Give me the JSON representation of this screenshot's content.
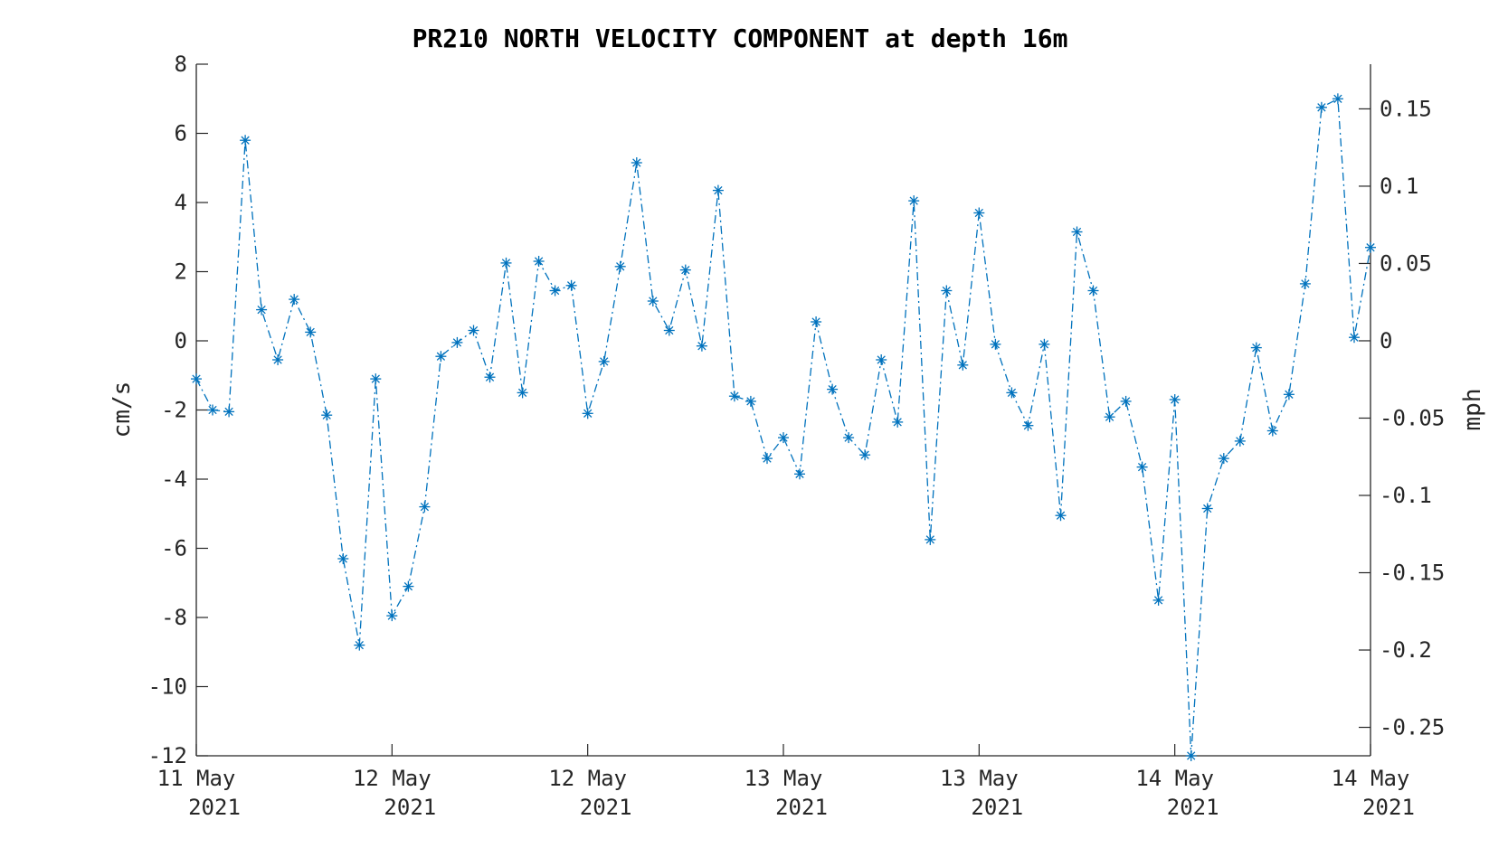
{
  "chart_data": {
    "type": "line",
    "title": "PR210 NORTH VELOCITY COMPONENT at depth 16m",
    "ylabel": "cm/s",
    "ylabel_right": "mph",
    "ylim": [
      -12,
      8
    ],
    "ylim_right": [
      -0.2684,
      0.1789
    ],
    "y_ticks": [
      "8",
      "6",
      "4",
      "2",
      "0",
      "-2",
      "-4",
      "-6",
      "-8",
      "-10",
      "-12"
    ],
    "y_ticks_right": [
      "0.15",
      "0.1",
      "0.05",
      "0",
      "-0.05",
      "-0.1",
      "-0.15",
      "-0.2",
      "-0.25"
    ],
    "x_ticks": [
      {
        "line1": "11 May",
        "line2": "2021"
      },
      {
        "line1": "12 May",
        "line2": "2021"
      },
      {
        "line1": "12 May",
        "line2": "2021"
      },
      {
        "line1": "13 May",
        "line2": "2021"
      },
      {
        "line1": "13 May",
        "line2": "2021"
      },
      {
        "line1": "14 May",
        "line2": "2021"
      },
      {
        "line1": "14 May",
        "line2": "2021"
      }
    ],
    "x_ticks_hours": [
      0,
      18,
      36,
      54,
      72,
      90,
      108
    ],
    "grid": false,
    "line_color": "#0072BD",
    "line_style": "dash-dot",
    "marker": "asterisk",
    "sample_interval_hours": 1.5,
    "series": [
      {
        "values": [
          -1.1,
          -2.0,
          -2.05,
          5.8,
          0.9,
          -0.55,
          1.2,
          0.25,
          -2.15,
          -6.3,
          -8.8,
          -1.1,
          -7.95,
          -7.1,
          -4.8,
          -0.45,
          -0.05,
          0.3,
          -1.05,
          2.25,
          -1.5,
          2.3,
          1.45,
          1.6,
          -2.1,
          -0.6,
          2.15,
          5.15,
          1.15,
          0.3,
          2.05,
          -0.15,
          4.35,
          -1.6,
          -1.75,
          -3.4,
          -2.8,
          -3.85,
          0.55,
          -1.4,
          -2.8,
          -3.3,
          -0.55,
          -2.35,
          4.05,
          -5.75,
          1.45,
          -0.7,
          3.7,
          -0.1,
          -1.5,
          -2.45,
          -0.1,
          -5.05,
          3.15,
          1.45,
          -2.2,
          -1.75,
          -3.65,
          -7.5,
          -1.7,
          -12.0,
          -4.85,
          -3.4,
          -2.9,
          -0.2,
          -2.6,
          -1.55,
          1.65,
          6.75,
          7.0,
          0.1,
          2.7
        ]
      }
    ]
  }
}
